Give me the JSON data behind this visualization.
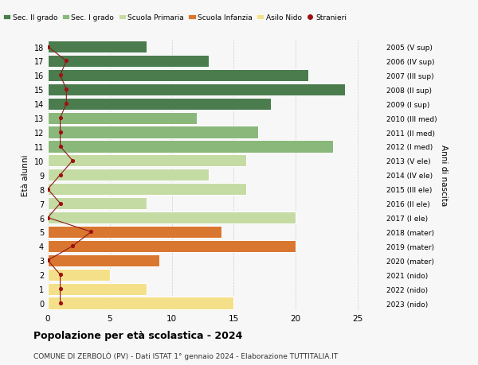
{
  "ages": [
    18,
    17,
    16,
    15,
    14,
    13,
    12,
    11,
    10,
    9,
    8,
    7,
    6,
    5,
    4,
    3,
    2,
    1,
    0
  ],
  "right_labels": [
    "2005 (V sup)",
    "2006 (IV sup)",
    "2007 (III sup)",
    "2008 (II sup)",
    "2009 (I sup)",
    "2010 (III med)",
    "2011 (II med)",
    "2012 (I med)",
    "2013 (V ele)",
    "2014 (IV ele)",
    "2015 (III ele)",
    "2016 (II ele)",
    "2017 (I ele)",
    "2018 (mater)",
    "2019 (mater)",
    "2020 (mater)",
    "2021 (nido)",
    "2022 (nido)",
    "2023 (nido)"
  ],
  "bar_values": [
    8,
    13,
    21,
    24,
    18,
    12,
    17,
    23,
    16,
    13,
    16,
    8,
    20,
    14,
    20,
    9,
    5,
    8,
    15
  ],
  "bar_colors": [
    "#4a7c4e",
    "#4a7c4e",
    "#4a7c4e",
    "#4a7c4e",
    "#4a7c4e",
    "#8ab87a",
    "#8ab87a",
    "#8ab87a",
    "#c5dba4",
    "#c5dba4",
    "#c5dba4",
    "#c5dba4",
    "#c5dba4",
    "#d97730",
    "#d97730",
    "#d97730",
    "#f5e08a",
    "#f5e08a",
    "#f5e08a"
  ],
  "stranieri_x": [
    0,
    1.5,
    1.0,
    1.5,
    1.5,
    1.0,
    1.0,
    1.0,
    2.0,
    1.0,
    0,
    1.0,
    0,
    3.5,
    2.0,
    0,
    1.0,
    1.0,
    1.0
  ],
  "legend_labels": [
    "Sec. II grado",
    "Sec. I grado",
    "Scuola Primaria",
    "Scuola Infanzia",
    "Asilo Nido",
    "Stranieri"
  ],
  "legend_colors": [
    "#4a7c4e",
    "#8ab87a",
    "#c5dba4",
    "#d97730",
    "#f5e08a",
    "#a01010"
  ],
  "title": "Popolazione per età scolastica - 2024",
  "subtitle": "COMUNE DI ZERBOLÒ (PV) - Dati ISTAT 1° gennaio 2024 - Elaborazione TUTTITALIA.IT",
  "ylabel": "Età alunni",
  "right_axis_label": "Anni di nascita",
  "xlim": [
    0,
    27
  ],
  "background_color": "#f7f7f7",
  "grid_color": "#cccccc"
}
